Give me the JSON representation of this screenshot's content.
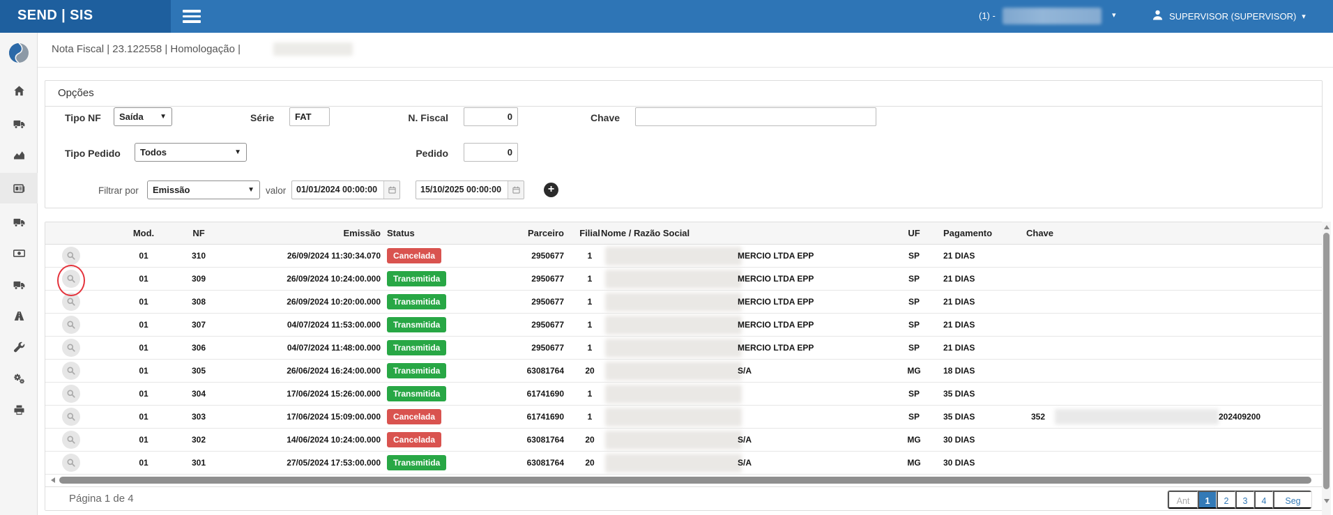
{
  "topbar": {
    "brand": "SEND | SIS",
    "company_label": "(1) -",
    "user_label": "SUPERVISOR (SUPERVISOR)"
  },
  "breadcrumb": {
    "text": "Nota Fiscal | 23.122558 | Homologação |"
  },
  "sidebar": {
    "items": [
      {
        "name": "home",
        "active": false
      },
      {
        "name": "truck-out",
        "active": false
      },
      {
        "name": "chart-area",
        "active": false
      },
      {
        "name": "nota-fiscal",
        "active": true
      },
      {
        "name": "truck-delivery",
        "active": false
      },
      {
        "name": "money",
        "active": false
      },
      {
        "name": "truck-fleet",
        "active": false
      },
      {
        "name": "road",
        "active": false
      },
      {
        "name": "wrench",
        "active": false
      },
      {
        "name": "cogs",
        "active": false
      },
      {
        "name": "print",
        "active": false
      }
    ]
  },
  "filters": {
    "title": "Opções",
    "tipo_nf": {
      "label": "Tipo NF",
      "value": "Saída"
    },
    "serie": {
      "label": "Série",
      "value": "FAT"
    },
    "n_fiscal": {
      "label": "N. Fiscal",
      "value": "0"
    },
    "chave": {
      "label": "Chave",
      "value": ""
    },
    "tipo_pedido": {
      "label": "Tipo Pedido",
      "value": "Todos"
    },
    "pedido": {
      "label": "Pedido",
      "value": "0"
    },
    "filtrar_por": {
      "label": "Filtrar por",
      "value": "Emissão"
    },
    "valor_label": "valor",
    "date_from": "01/01/2024 00:00:00",
    "date_to": "15/10/2025 00:00:00"
  },
  "table": {
    "columns": [
      "Mod.",
      "NF",
      "Emissão",
      "Status",
      "Parceiro",
      "Filial",
      "Nome / Razão Social",
      "UF",
      "Pagamento",
      "Chave"
    ],
    "rows": [
      {
        "mod": "01",
        "nf": "310",
        "emissao": "26/09/2024 11:30:34.070",
        "status": "Cancelada",
        "parceiro": "2950677",
        "filial": "1",
        "nome": "MERCIO LTDA EPP",
        "uf": "SP",
        "pagamento": "21 DIAS",
        "chave_prefix": "",
        "chave_suffix": "",
        "chave_blur": false,
        "annotated": false
      },
      {
        "mod": "01",
        "nf": "309",
        "emissao": "26/09/2024 10:24:00.000",
        "status": "Transmitida",
        "parceiro": "2950677",
        "filial": "1",
        "nome": "MERCIO LTDA EPP",
        "uf": "SP",
        "pagamento": "21 DIAS",
        "chave_prefix": "",
        "chave_suffix": "",
        "chave_blur": false,
        "annotated": true
      },
      {
        "mod": "01",
        "nf": "308",
        "emissao": "26/09/2024 10:20:00.000",
        "status": "Transmitida",
        "parceiro": "2950677",
        "filial": "1",
        "nome": "MERCIO LTDA EPP",
        "uf": "SP",
        "pagamento": "21 DIAS",
        "chave_prefix": "",
        "chave_suffix": "",
        "chave_blur": false,
        "annotated": false
      },
      {
        "mod": "01",
        "nf": "307",
        "emissao": "04/07/2024 11:53:00.000",
        "status": "Transmitida",
        "parceiro": "2950677",
        "filial": "1",
        "nome": "MERCIO LTDA EPP",
        "uf": "SP",
        "pagamento": "21 DIAS",
        "chave_prefix": "",
        "chave_suffix": "",
        "chave_blur": false,
        "annotated": false
      },
      {
        "mod": "01",
        "nf": "306",
        "emissao": "04/07/2024 11:48:00.000",
        "status": "Transmitida",
        "parceiro": "2950677",
        "filial": "1",
        "nome": "MERCIO LTDA EPP",
        "uf": "SP",
        "pagamento": "21 DIAS",
        "chave_prefix": "",
        "chave_suffix": "",
        "chave_blur": false,
        "annotated": false
      },
      {
        "mod": "01",
        "nf": "305",
        "emissao": "26/06/2024 16:24:00.000",
        "status": "Transmitida",
        "parceiro": "63081764",
        "filial": "20",
        "nome": "S/A",
        "uf": "MG",
        "pagamento": "18 DIAS",
        "chave_prefix": "",
        "chave_suffix": "",
        "chave_blur": false,
        "annotated": false
      },
      {
        "mod": "01",
        "nf": "304",
        "emissao": "17/06/2024 15:26:00.000",
        "status": "Transmitida",
        "parceiro": "61741690",
        "filial": "1",
        "nome": "",
        "uf": "SP",
        "pagamento": "35 DIAS",
        "chave_prefix": "",
        "chave_suffix": "",
        "chave_blur": false,
        "annotated": false
      },
      {
        "mod": "01",
        "nf": "303",
        "emissao": "17/06/2024 15:09:00.000",
        "status": "Cancelada",
        "parceiro": "61741690",
        "filial": "1",
        "nome": "",
        "uf": "SP",
        "pagamento": "35 DIAS",
        "chave_prefix": "352",
        "chave_suffix": "202409200",
        "chave_blur": true,
        "annotated": false
      },
      {
        "mod": "01",
        "nf": "302",
        "emissao": "14/06/2024 10:24:00.000",
        "status": "Cancelada",
        "parceiro": "63081764",
        "filial": "20",
        "nome": "S/A",
        "uf": "MG",
        "pagamento": "30 DIAS",
        "chave_prefix": "",
        "chave_suffix": "",
        "chave_blur": false,
        "annotated": false
      },
      {
        "mod": "01",
        "nf": "301",
        "emissao": "27/05/2024 17:53:00.000",
        "status": "Transmitida",
        "parceiro": "63081764",
        "filial": "20",
        "nome": "S/A",
        "uf": "MG",
        "pagamento": "30 DIAS",
        "chave_prefix": "",
        "chave_suffix": "",
        "chave_blur": false,
        "annotated": false
      }
    ]
  },
  "status_colors": {
    "Cancelada": "#d9534f",
    "Transmitida": "#28a745"
  },
  "footer": {
    "page_info": "Página 1 de 4",
    "pagination": [
      "Ant",
      "1",
      "2",
      "3",
      "4",
      "Seg"
    ],
    "active_page": "1",
    "disabled_pages": [
      "Ant"
    ]
  },
  "colors": {
    "accent": "#337ab7",
    "topbar": "#2e75b6",
    "topbar_brand": "#1e5f9e"
  }
}
